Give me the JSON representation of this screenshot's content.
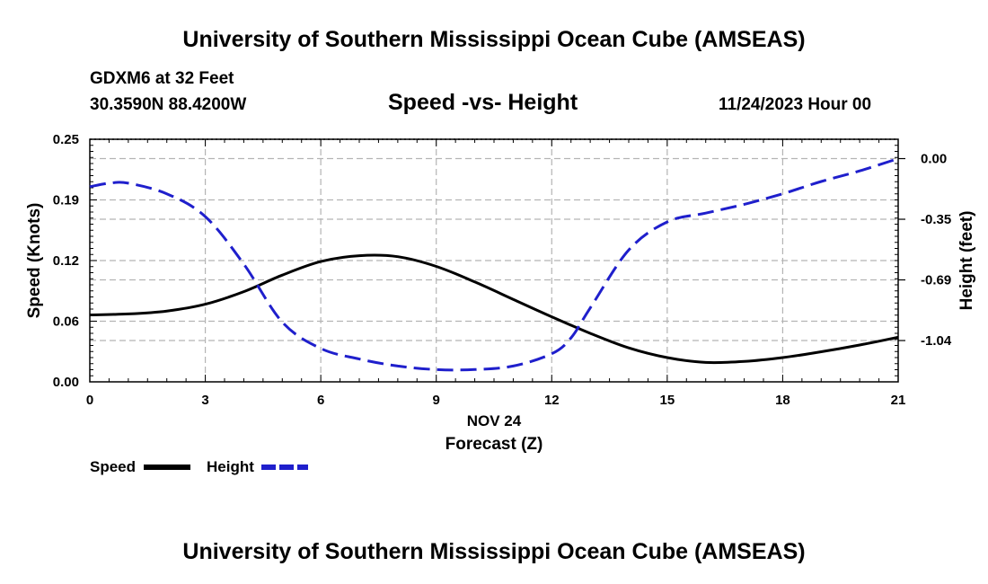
{
  "header": {
    "title": "University of Southern Mississippi Ocean Cube (AMSEAS)",
    "station": "GDXM6 at 32 Feet",
    "coordinates": "30.3590N  88.4200W",
    "chart_title": "Speed -vs- Height",
    "datetime": "11/24/2023 Hour 00"
  },
  "footer": {
    "title": "University of Southern Mississippi Ocean Cube (AMSEAS)"
  },
  "legend": {
    "speed_label": "Speed",
    "height_label": "Height"
  },
  "colors": {
    "speed": "#000000",
    "height": "#1f1fcc",
    "grid": "#b4b4b4"
  },
  "chart_data": {
    "type": "line",
    "title": "Speed -vs- Height",
    "xlabel": "Forecast (Z)",
    "xlabel_date": "NOV 24",
    "ylabel": "Speed (Knots)",
    "ylabel_right": "Height (feet)",
    "xlim": [
      0,
      21
    ],
    "ylim": [
      0,
      0.25
    ],
    "ylim_right": [
      -1.27,
      0.11
    ],
    "x_ticks": [
      0,
      3,
      6,
      9,
      12,
      15,
      18,
      21
    ],
    "x_tick_labels": [
      "0",
      "3",
      "6",
      "9",
      "12",
      "15",
      "18",
      "21"
    ],
    "y_ticks": [
      0,
      0.0625,
      0.125,
      0.1875,
      0.25
    ],
    "y_tick_labels": [
      "0.00",
      "0.06",
      "0.12",
      "0.19",
      "0.25"
    ],
    "y_right_ticks": [
      0.0,
      -0.345,
      -0.69,
      -1.035
    ],
    "y_right_tick_labels": [
      "0.00",
      "-0.35",
      "-0.69",
      "-1.04"
    ],
    "grid": true,
    "series": [
      {
        "name": "Speed",
        "axis": "left",
        "style": "solid",
        "x": [
          0,
          1,
          2,
          3,
          4,
          5,
          6,
          7,
          8,
          9,
          10,
          11,
          12,
          13,
          14,
          15,
          16,
          17,
          18,
          19,
          20,
          21
        ],
        "values": [
          0.069,
          0.07,
          0.073,
          0.08,
          0.093,
          0.11,
          0.124,
          0.13,
          0.129,
          0.119,
          0.103,
          0.085,
          0.067,
          0.05,
          0.035,
          0.025,
          0.02,
          0.021,
          0.025,
          0.031,
          0.038,
          0.046
        ]
      },
      {
        "name": "Height",
        "axis": "right",
        "style": "dashed",
        "x": [
          0,
          0.5,
          1,
          2,
          3,
          4,
          5,
          6,
          7,
          8,
          9,
          10,
          11,
          12,
          12.5,
          13,
          14,
          15,
          16,
          17,
          18,
          19,
          20,
          21
        ],
        "values": [
          -0.16,
          -0.14,
          -0.14,
          -0.2,
          -0.33,
          -0.6,
          -0.93,
          -1.08,
          -1.14,
          -1.18,
          -1.2,
          -1.2,
          -1.18,
          -1.11,
          -1.02,
          -0.85,
          -0.52,
          -0.36,
          -0.31,
          -0.26,
          -0.2,
          -0.13,
          -0.07,
          0.0
        ]
      }
    ]
  }
}
